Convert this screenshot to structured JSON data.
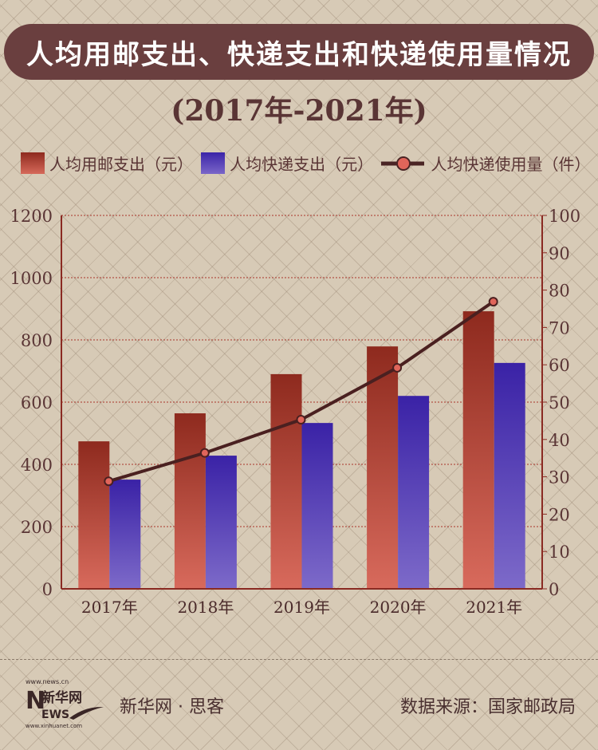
{
  "header": {
    "title": "人均用邮支出、快递支出和快递使用量情况",
    "subtitle": "(2017年-2021年)"
  },
  "legend": [
    {
      "label": "人均用邮支出（元）",
      "color": "#a8382a"
    },
    {
      "label": "人均快递支出（元）",
      "color": "#5238b4"
    },
    {
      "label": "人均快递使用量（件）",
      "color": "#e0655a"
    }
  ],
  "chart_data": {
    "type": "bar+line",
    "categories": [
      "2017年",
      "2018年",
      "2019年",
      "2020年",
      "2021年"
    ],
    "series": [
      {
        "name": "人均用邮支出（元）",
        "type": "bar",
        "axis": "left",
        "values": [
          474,
          564,
          690,
          779,
          892
        ]
      },
      {
        "name": "人均快递支出（元）",
        "type": "bar",
        "axis": "left",
        "values": [
          351,
          428,
          533,
          620,
          726
        ]
      },
      {
        "name": "人均快递使用量（件）",
        "type": "line",
        "axis": "right",
        "values": [
          28.8,
          36.4,
          45.3,
          59.2,
          76.9
        ]
      }
    ],
    "left_axis": {
      "range": [
        0,
        1200
      ],
      "ticks": [
        "0",
        "200",
        "400",
        "600",
        "800",
        "1000",
        "1200"
      ]
    },
    "right_axis": {
      "range": [
        0,
        100
      ],
      "ticks": [
        "0",
        "10",
        "20",
        "30",
        "40",
        "50",
        "60",
        "70",
        "80",
        "90",
        "100"
      ]
    },
    "grid": true,
    "legend_placement": "top"
  },
  "footer": {
    "logo_top": "www.news.cn",
    "logo_name": "新华网",
    "logo_news": "NEWS",
    "logo_bottom": "www.xinhuanet.com",
    "brand": "新华网 · 思客",
    "source": "数据来源：国家邮政局"
  }
}
